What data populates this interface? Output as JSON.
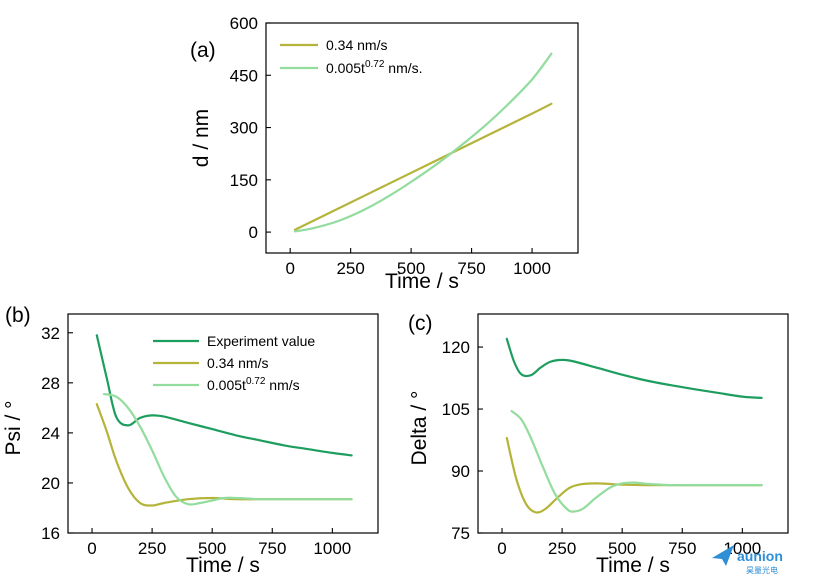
{
  "colors": {
    "experiment": "#1e9e5e",
    "rate_034": "#b5b43a",
    "rate_power": "#92dc9d",
    "logo": "#2e8fd6"
  },
  "logo": {
    "name": "aunion",
    "subtitle": "昊量光电",
    "icon": "arrow-logo-icon"
  },
  "chart_data": [
    {
      "panel": "(a)",
      "type": "line",
      "xlabel": "Time / s",
      "ylabel": "d / nm",
      "xlim": [
        -100,
        1190
      ],
      "ylim": [
        -60,
        600
      ],
      "xticks": [
        0,
        250,
        500,
        750,
        1000
      ],
      "yticks": [
        0,
        150,
        300,
        450,
        600
      ],
      "legend_position": "top-left",
      "series": [
        {
          "name": "0.34 nm/s",
          "color_key": "rate_034",
          "x": [
            20,
            200,
            400,
            600,
            800,
            1000,
            1080
          ],
          "y": [
            7,
            68,
            136,
            204,
            272,
            340,
            368
          ]
        },
        {
          "name": "0.005t^0.72 nm/s.",
          "color_key": "rate_power",
          "x": [
            20,
            100,
            200,
            300,
            400,
            500,
            600,
            700,
            800,
            900,
            1000,
            1080
          ],
          "y": [
            2,
            12,
            32,
            62,
            100,
            144,
            192,
            245,
            302,
            366,
            438,
            512
          ]
        }
      ]
    },
    {
      "panel": "(b)",
      "type": "line",
      "xlabel": "Time / s",
      "ylabel": "Psi / °",
      "xlim": [
        -100,
        1190
      ],
      "ylim": [
        16,
        33.5
      ],
      "xticks": [
        0,
        250,
        500,
        750,
        1000,
        "1000"
      ],
      "yticks": [
        16,
        20,
        24,
        28,
        32
      ],
      "legend_position": "top-right",
      "series": [
        {
          "name": "Experiment value",
          "color_key": "experiment",
          "x": [
            20,
            60,
            100,
            150,
            200,
            250,
            300,
            400,
            500,
            600,
            700,
            800,
            900,
            1000,
            1080
          ],
          "y": [
            31.8,
            28.5,
            25.3,
            24.6,
            25.2,
            25.4,
            25.3,
            24.8,
            24.3,
            23.8,
            23.4,
            23.0,
            22.7,
            22.4,
            22.2
          ]
        },
        {
          "name": "0.34 nm/s",
          "color_key": "rate_034",
          "x": [
            20,
            60,
            100,
            150,
            200,
            250,
            300,
            400,
            500,
            600,
            700,
            800,
            1000,
            1080
          ],
          "y": [
            26.3,
            24.2,
            21.8,
            19.6,
            18.4,
            18.2,
            18.4,
            18.7,
            18.8,
            18.7,
            18.7,
            18.7,
            18.7,
            18.7
          ]
        },
        {
          "name": "0.005t^0.72 nm/s",
          "color_key": "rate_power",
          "x": [
            50,
            100,
            150,
            200,
            250,
            300,
            350,
            400,
            450,
            500,
            550,
            600,
            700,
            800,
            1000,
            1080
          ],
          "y": [
            27.1,
            26.9,
            26.0,
            24.5,
            22.6,
            20.5,
            18.9,
            18.3,
            18.4,
            18.6,
            18.8,
            18.8,
            18.7,
            18.7,
            18.7,
            18.7
          ]
        }
      ]
    },
    {
      "panel": "(c)",
      "type": "line",
      "xlabel": "Time / s",
      "ylabel": "Delta / °",
      "xlim": [
        -100,
        1190
      ],
      "ylim": [
        75,
        128
      ],
      "xticks": [
        0,
        250,
        500,
        750,
        1000
      ],
      "yticks": [
        75,
        90,
        105,
        120
      ],
      "series": [
        {
          "name": "Experiment value",
          "color_key": "experiment",
          "x": [
            20,
            50,
            80,
            120,
            160,
            200,
            250,
            300,
            400,
            500,
            600,
            700,
            800,
            900,
            1000,
            1080
          ],
          "y": [
            122.0,
            116.5,
            113.4,
            113.2,
            115.0,
            116.4,
            116.9,
            116.5,
            114.9,
            113.3,
            111.9,
            110.8,
            109.8,
            108.9,
            108.0,
            107.7
          ]
        },
        {
          "name": "0.34 nm/s",
          "color_key": "rate_034",
          "x": [
            20,
            60,
            100,
            140,
            180,
            230,
            280,
            330,
            400,
            500,
            600,
            700,
            800,
            1000,
            1080
          ],
          "y": [
            98.0,
            88.0,
            82.0,
            80.0,
            80.8,
            83.5,
            85.9,
            86.8,
            87.0,
            86.7,
            86.6,
            86.6,
            86.6,
            86.6,
            86.6
          ]
        },
        {
          "name": "0.005t^0.72 nm/s",
          "color_key": "rate_power",
          "x": [
            40,
            80,
            120,
            170,
            220,
            270,
            300,
            340,
            390,
            450,
            500,
            550,
            600,
            700,
            800,
            1000,
            1080
          ],
          "y": [
            104.5,
            102.5,
            98.0,
            91.0,
            84.5,
            80.8,
            80.2,
            81.0,
            83.5,
            86.0,
            87.0,
            87.2,
            86.9,
            86.6,
            86.6,
            86.6,
            86.6
          ]
        }
      ]
    }
  ]
}
